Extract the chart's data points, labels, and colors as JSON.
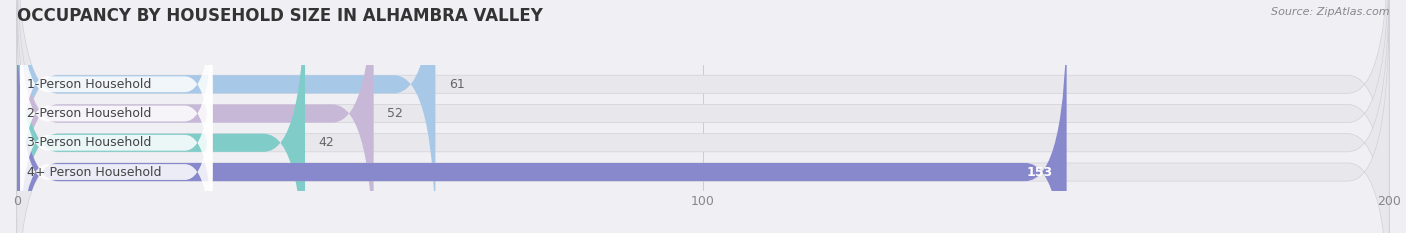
{
  "title": "OCCUPANCY BY HOUSEHOLD SIZE IN ALHAMBRA VALLEY",
  "source": "Source: ZipAtlas.com",
  "categories": [
    "1-Person Household",
    "2-Person Household",
    "3-Person Household",
    "4+ Person Household"
  ],
  "values": [
    61,
    52,
    42,
    153
  ],
  "bar_colors": [
    "#a8c8e8",
    "#c8b8d8",
    "#80ccc8",
    "#8888cc"
  ],
  "bar_bg_color": "#e8e8ec",
  "xlim": [
    0,
    200
  ],
  "xticks": [
    0,
    100,
    200
  ],
  "figsize": [
    14.06,
    2.33
  ],
  "dpi": 100,
  "title_fontsize": 12,
  "label_fontsize": 9,
  "value_fontsize": 9,
  "tick_fontsize": 9,
  "background_color": "#f0f0f4",
  "value_color_inside": "#ffffff",
  "value_color_outside": "#666666"
}
